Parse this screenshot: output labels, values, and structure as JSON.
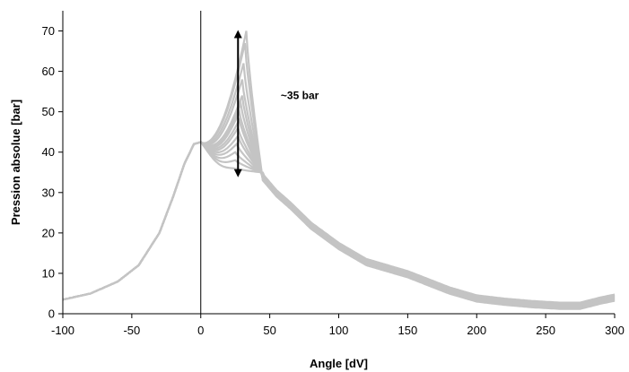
{
  "chart_data": {
    "type": "line",
    "title": "",
    "xlabel": "Angle [dV]",
    "ylabel": "Pression absolue [bar]",
    "xlim": [
      -100,
      300
    ],
    "ylim": [
      0,
      75
    ],
    "xticks": [
      -100,
      -50,
      0,
      50,
      100,
      150,
      200,
      250,
      300
    ],
    "yticks": [
      0,
      10,
      20,
      30,
      40,
      50,
      60,
      70
    ],
    "x_tick_labels": [
      "-100",
      "-50",
      "0",
      "50",
      "100",
      "150",
      "200",
      "250",
      "300"
    ],
    "y_tick_labels": [
      "0",
      "10",
      "20",
      "30",
      "40",
      "50",
      "60",
      "70"
    ],
    "grid": false,
    "legend": "none",
    "series_color": "#c4c4c4",
    "series": [
      {
        "peak_x": 33,
        "peak_y": 70
      },
      {
        "peak_x": 32,
        "peak_y": 67
      },
      {
        "peak_x": 31,
        "peak_y": 62
      },
      {
        "peak_x": 30,
        "peak_y": 58
      },
      {
        "peak_x": 30,
        "peak_y": 54
      },
      {
        "peak_x": 29,
        "peak_y": 52
      },
      {
        "peak_x": 28,
        "peak_y": 50
      },
      {
        "peak_x": 28,
        "peak_y": 48
      },
      {
        "peak_x": 27,
        "peak_y": 46
      },
      {
        "peak_x": 27,
        "peak_y": 44
      },
      {
        "peak_x": 26,
        "peak_y": 42
      },
      {
        "peak_x": 25,
        "peak_y": 40
      },
      {
        "peak_x": 25,
        "peak_y": 38
      },
      {
        "peak_x": 24,
        "peak_y": 36
      }
    ],
    "annotation": {
      "text": "~35 bar",
      "arrow_x": 27,
      "arrow_from": 34,
      "arrow_to": 70,
      "text_x": 58,
      "text_y": 54
    }
  }
}
